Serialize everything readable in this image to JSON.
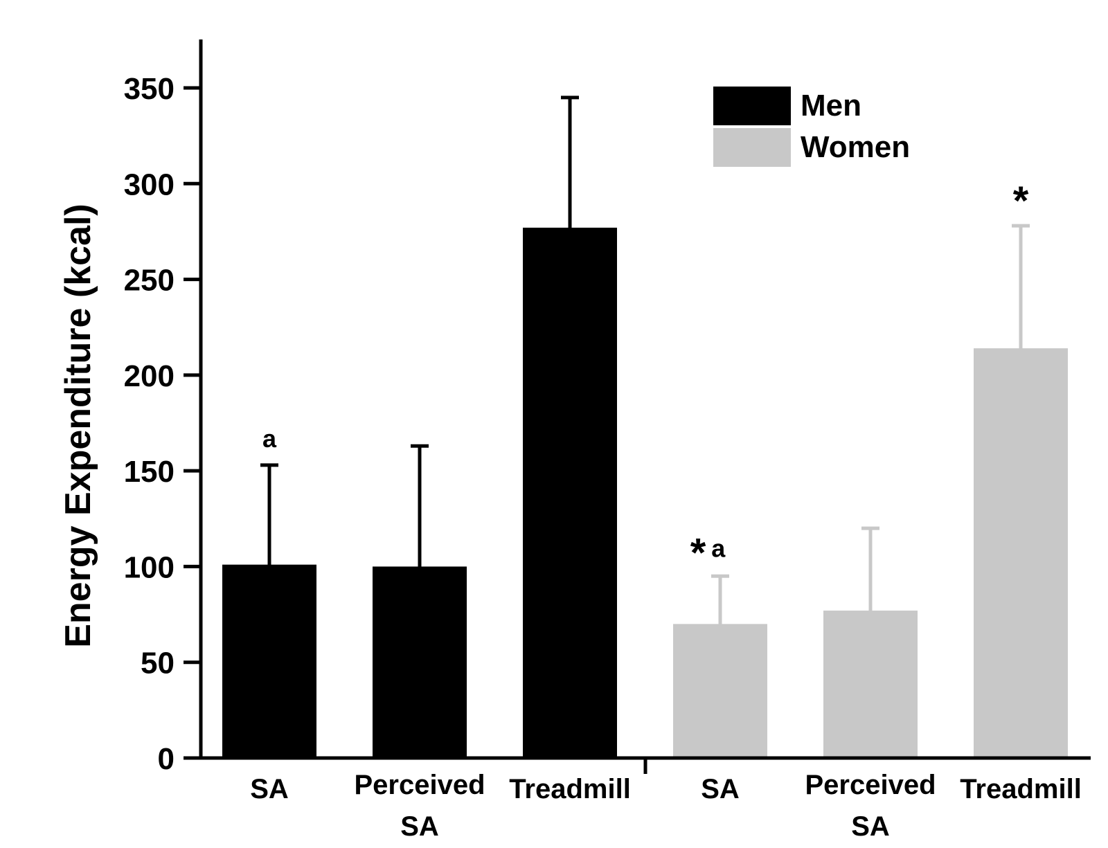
{
  "chart_data": {
    "type": "bar",
    "ylabel": "Energy Expenditure (kcal)",
    "ylim": [
      0,
      370
    ],
    "yticks": [
      0,
      50,
      100,
      150,
      200,
      250,
      300,
      350
    ],
    "grid": false,
    "legend_placement": "top-right",
    "bars": [
      {
        "group": "Men",
        "category": "SA",
        "value": 101,
        "error_upper": 153,
        "annotation": "a"
      },
      {
        "group": "Men",
        "category": "Perceived SA",
        "value": 100,
        "error_upper": 163,
        "annotation": ""
      },
      {
        "group": "Men",
        "category": "Treadmill",
        "value": 277,
        "error_upper": 345,
        "annotation": ""
      },
      {
        "group": "Women",
        "category": "SA",
        "value": 70,
        "error_upper": 95,
        "annotation": "* a"
      },
      {
        "group": "Women",
        "category": "Perceived SA",
        "value": 77,
        "error_upper": 120,
        "annotation": ""
      },
      {
        "group": "Women",
        "category": "Treadmill",
        "value": 214,
        "error_upper": 278,
        "annotation": "*"
      }
    ],
    "categories": [
      "SA",
      "Perceived SA",
      "Treadmill",
      "SA",
      "Perceived SA",
      "Treadmill"
    ],
    "series": [
      {
        "name": "Men",
        "color": "#000000"
      },
      {
        "name": "Women",
        "color": "#c8c8c8"
      }
    ]
  }
}
